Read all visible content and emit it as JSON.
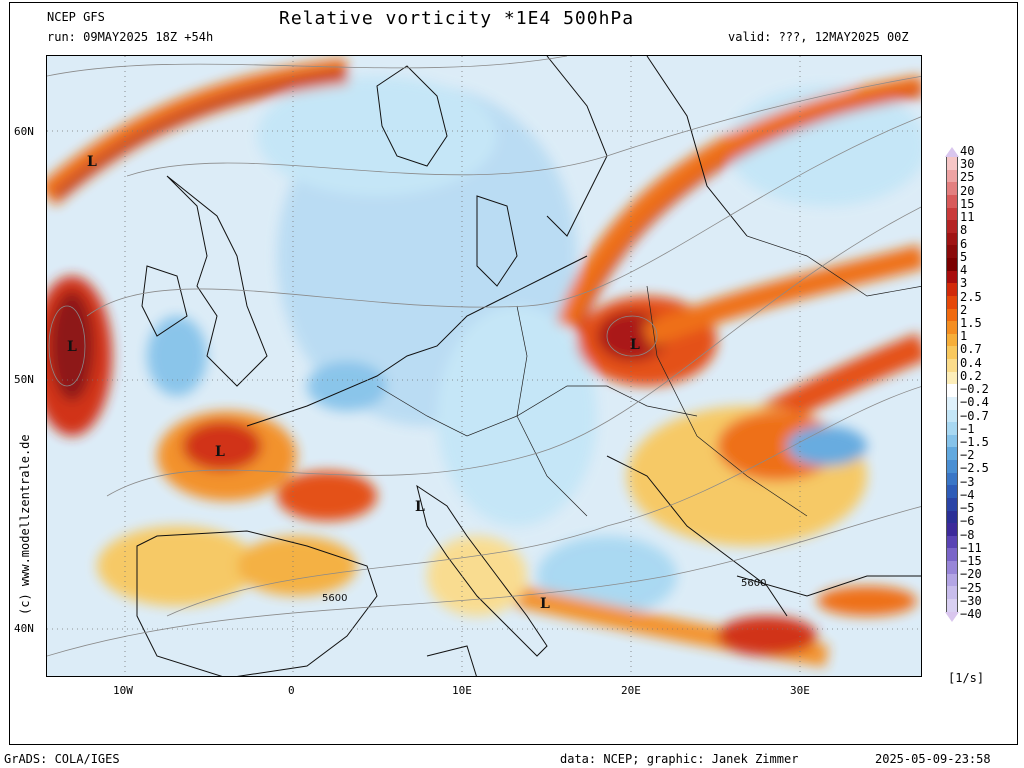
{
  "header": {
    "model": "NCEP GFS",
    "run": "run: 09MAY2025 18Z +54h",
    "title": "Relative vorticity *1E4 500hPa",
    "valid": "valid: ???, 12MAY2025 00Z"
  },
  "footer": {
    "left": "GrADS: COLA/IGES",
    "credit": "data: NCEP; graphic: Janek Zimmer",
    "timestamp": "2025-05-09-23:58"
  },
  "side_credit": "(c) www.modellzentrale.de",
  "axes": {
    "lat_labels": [
      "60N",
      "50N",
      "40N"
    ],
    "lon_labels": [
      "10W",
      "0",
      "10E",
      "20E",
      "30E"
    ]
  },
  "map_labels": {
    "lows": [
      "L",
      "L",
      "L",
      "L",
      "L",
      "L"
    ],
    "contours": [
      "5600",
      "5600"
    ]
  },
  "colorbar": {
    "unit": "[1/s]",
    "levels": [
      "40",
      "30",
      "25",
      "20",
      "15",
      "11",
      "8",
      "6",
      "5",
      "4",
      "3",
      "2.5",
      "2",
      "1.5",
      "1",
      "0.7",
      "0.4",
      "0.2",
      "−0.2",
      "−0.4",
      "−0.7",
      "−1",
      "−1.5",
      "−2",
      "−2.5",
      "−3",
      "−4",
      "−5",
      "−6",
      "−8",
      "−11",
      "−15",
      "−20",
      "−25",
      "−30",
      "−40"
    ],
    "colors": [
      "#f6c6c6",
      "#eea3a3",
      "#e37f7f",
      "#d85a5a",
      "#c93a3a",
      "#b42424",
      "#9f1414",
      "#8a0a0a",
      "#7a0000",
      "#a80d0d",
      "#d12a0a",
      "#e5480a",
      "#f06a10",
      "#f48e22",
      "#f6ae3a",
      "#f8c85e",
      "#fbdc8b",
      "#fdeeba",
      "#ffffff",
      "#dff1fb",
      "#c4e6f7",
      "#a8d8f2",
      "#86c3ea",
      "#62a9df",
      "#4a8fd3",
      "#3a76c6",
      "#2e5cb8",
      "#2a44a6",
      "#2a2f96",
      "#3c2a9a",
      "#5a44b4",
      "#7a65c8",
      "#9886d8",
      "#b3a5e4",
      "#c8bdec",
      "#d9d0f2"
    ]
  }
}
